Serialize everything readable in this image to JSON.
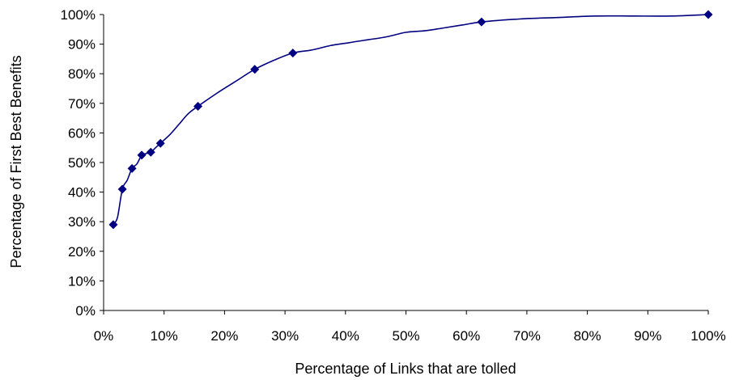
{
  "chart_data": {
    "type": "line",
    "title": "",
    "xlabel": "Percentage of Links that are tolled",
    "ylabel": "Percentage of First Best Benefits",
    "xlim": [
      0,
      100
    ],
    "ylim": [
      0,
      100
    ],
    "x_ticks": [
      "0%",
      "10%",
      "20%",
      "30%",
      "40%",
      "50%",
      "60%",
      "70%",
      "80%",
      "90%",
      "100%"
    ],
    "y_ticks": [
      "0%",
      "10%",
      "20%",
      "30%",
      "40%",
      "50%",
      "60%",
      "70%",
      "80%",
      "90%",
      "100%"
    ],
    "grid": false,
    "legend": "none",
    "series": [
      {
        "marker": "diamond",
        "color": "#000080",
        "x": [
          1.6,
          3.1,
          4.7,
          6.3,
          7.8,
          9.4,
          15.6,
          25.0,
          31.3,
          62.5,
          100.0
        ],
        "y": [
          29,
          41,
          48,
          52.5,
          53.5,
          56.5,
          69,
          81.5,
          87,
          97.5,
          100
        ]
      }
    ],
    "curve_through": {
      "x": [
        1.6,
        2.3,
        3.1,
        3.9,
        4.7,
        5.5,
        6.3,
        7.0,
        7.8,
        8.6,
        9.4,
        11.0,
        12.5,
        14.0,
        15.6,
        18.8,
        21.9,
        25.0,
        28.1,
        31.3,
        34.4,
        37.5,
        40.6,
        43.8,
        46.9,
        50.0,
        53.1,
        56.3,
        59.4,
        62.5,
        68.8,
        75.0,
        81.3,
        87.5,
        93.8,
        100.0
      ],
      "y": [
        29,
        31.5,
        41,
        44,
        48,
        49.5,
        52.5,
        53,
        53.5,
        55,
        56.5,
        59.5,
        63,
        66.5,
        69,
        73.5,
        77.5,
        81.5,
        84.5,
        87,
        88,
        89.5,
        90.5,
        91.5,
        92.5,
        94,
        94.5,
        95.5,
        96.5,
        97.5,
        98.5,
        99,
        99.5,
        99.5,
        99.5,
        100
      ]
    }
  }
}
